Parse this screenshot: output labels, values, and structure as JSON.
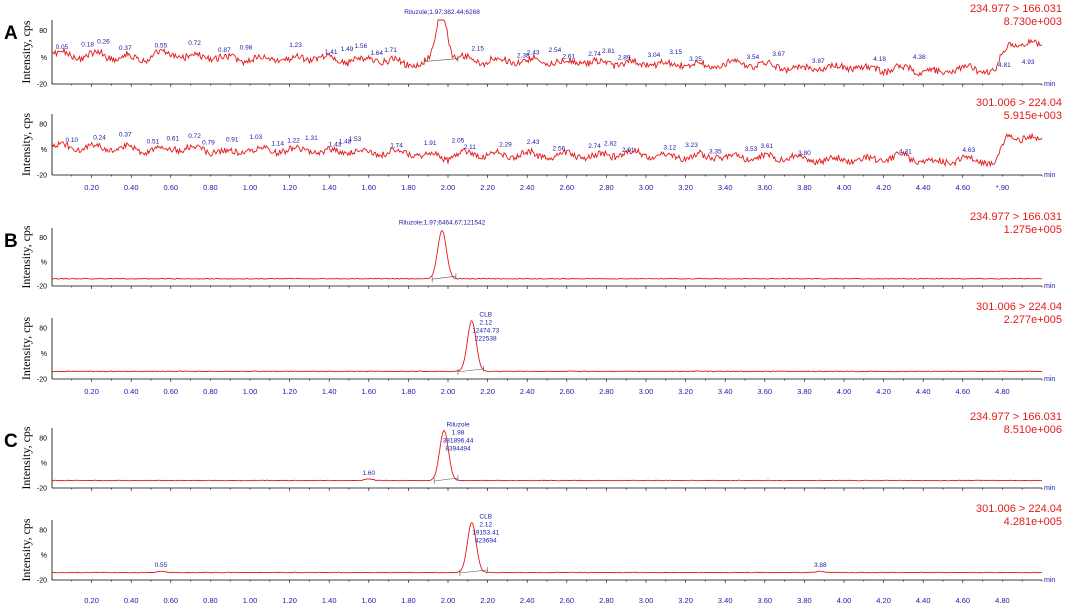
{
  "chart_data": [
    {
      "type": "line",
      "panel": "A",
      "transition": "234.977 > 166.031",
      "intensity": "8.730e+003",
      "ylabel": "Intensity, cps",
      "yticks": [
        "80",
        "%",
        "-20"
      ],
      "xunit": "min",
      "xlim": [
        0,
        5
      ],
      "show_xticks": false,
      "noise": 20,
      "peaks": [
        {
          "x": 1.97,
          "height": 95,
          "width": 0.025,
          "label": [
            "Riluzole;1.97;382.44;6268"
          ],
          "baseline": [
            1.88,
            2.05
          ]
        },
        {
          "x": 4.81,
          "height": 45,
          "width": 0.03
        }
      ],
      "peak_labels": [
        {
          "x": 0.05,
          "text": "0.05"
        },
        {
          "x": 0.18,
          "text": "0.18"
        },
        {
          "x": 0.26,
          "text": "0.26"
        },
        {
          "x": 0.37,
          "text": "0.37"
        },
        {
          "x": 0.55,
          "text": "0.55"
        },
        {
          "x": 0.72,
          "text": "0.72"
        },
        {
          "x": 0.87,
          "text": "0.87"
        },
        {
          "x": 0.98,
          "text": "0.98"
        },
        {
          "x": 1.23,
          "text": "1.23"
        },
        {
          "x": 1.41,
          "text": "1.41"
        },
        {
          "x": 1.49,
          "text": "1.49"
        },
        {
          "x": 1.56,
          "text": "1.56"
        },
        {
          "x": 1.64,
          "text": "1.64"
        },
        {
          "x": 1.71,
          "text": "1.71"
        },
        {
          "x": 2.15,
          "text": "2.15"
        },
        {
          "x": 2.38,
          "text": "2.38"
        },
        {
          "x": 2.43,
          "text": "2.43"
        },
        {
          "x": 2.54,
          "text": "2.54"
        },
        {
          "x": 2.61,
          "text": "2.61"
        },
        {
          "x": 2.74,
          "text": "2.74"
        },
        {
          "x": 2.81,
          "text": "2.81"
        },
        {
          "x": 2.89,
          "text": "2.89"
        },
        {
          "x": 3.04,
          "text": "3.04"
        },
        {
          "x": 3.15,
          "text": "3.15"
        },
        {
          "x": 3.25,
          "text": "3.25"
        },
        {
          "x": 3.54,
          "text": "3.54"
        },
        {
          "x": 3.67,
          "text": "3.67"
        },
        {
          "x": 3.87,
          "text": "3.87"
        },
        {
          "x": 4.18,
          "text": "4.18"
        },
        {
          "x": 4.38,
          "text": "4.38"
        },
        {
          "x": 4.81,
          "text": "4.81"
        },
        {
          "x": 4.93,
          "text": "4.93"
        }
      ]
    },
    {
      "type": "line",
      "panel": "",
      "transition": "301.006 > 224.04",
      "intensity": "5.915e+003",
      "ylabel": "Intensity, cps",
      "yticks": [
        "80",
        "%",
        "-20"
      ],
      "xunit": "min",
      "xlim": [
        0,
        5
      ],
      "show_xticks": true,
      "noise": 20,
      "peaks": [
        {
          "x": 4.8,
          "height": 45,
          "width": 0.03
        }
      ],
      "peak_labels": [
        {
          "x": 0.1,
          "text": "0.10"
        },
        {
          "x": 0.24,
          "text": "0.24"
        },
        {
          "x": 0.37,
          "text": "0.37"
        },
        {
          "x": 0.51,
          "text": "0.51"
        },
        {
          "x": 0.61,
          "text": "0.61"
        },
        {
          "x": 0.72,
          "text": "0.72"
        },
        {
          "x": 0.79,
          "text": "0.79"
        },
        {
          "x": 0.91,
          "text": "0.91"
        },
        {
          "x": 1.03,
          "text": "1.03"
        },
        {
          "x": 1.14,
          "text": "1.14"
        },
        {
          "x": 1.22,
          "text": "1.22"
        },
        {
          "x": 1.31,
          "text": "1.31"
        },
        {
          "x": 1.43,
          "text": "1.43"
        },
        {
          "x": 1.48,
          "text": "1.48"
        },
        {
          "x": 1.53,
          "text": "1.53"
        },
        {
          "x": 1.74,
          "text": "1.74"
        },
        {
          "x": 1.91,
          "text": "1.91"
        },
        {
          "x": 2.05,
          "text": "2.05"
        },
        {
          "x": 2.11,
          "text": "2.11"
        },
        {
          "x": 2.29,
          "text": "2.29"
        },
        {
          "x": 2.43,
          "text": "2.43"
        },
        {
          "x": 2.56,
          "text": "2.56"
        },
        {
          "x": 2.74,
          "text": "2.74"
        },
        {
          "x": 2.82,
          "text": "2.82"
        },
        {
          "x": 2.91,
          "text": "2.91"
        },
        {
          "x": 3.12,
          "text": "3.12"
        },
        {
          "x": 3.23,
          "text": "3.23"
        },
        {
          "x": 3.35,
          "text": "3.35"
        },
        {
          "x": 3.53,
          "text": "3.53"
        },
        {
          "x": 3.61,
          "text": "3.61"
        },
        {
          "x": 3.8,
          "text": "3.80"
        },
        {
          "x": 4.31,
          "text": "4.31"
        },
        {
          "x": 4.63,
          "text": "4.63"
        }
      ]
    },
    {
      "type": "line",
      "panel": "B",
      "transition": "234.977 > 166.031",
      "intensity": "1.275e+005",
      "ylabel": "Intensity, cps",
      "yticks": [
        "80",
        "%",
        "-20"
      ],
      "xunit": "min",
      "xlim": [
        0,
        5
      ],
      "show_xticks": false,
      "noise": 1.5,
      "peaks": [
        {
          "x": 1.97,
          "height": 100,
          "width": 0.022,
          "label": [
            "Riluzole;1.97;6464.67;121542"
          ],
          "baseline": [
            1.92,
            2.04
          ]
        }
      ],
      "peak_labels": []
    },
    {
      "type": "line",
      "panel": "",
      "transition": "301.006 > 224.04",
      "intensity": "2.277e+005",
      "ylabel": "Intensity, cps",
      "yticks": [
        "80",
        "%",
        "-20"
      ],
      "xunit": "min",
      "xlim": [
        0,
        5
      ],
      "show_xticks": true,
      "noise": 1.5,
      "peaks": [
        {
          "x": 2.12,
          "height": 100,
          "width": 0.022,
          "label": [
            "CLB",
            "2.12",
            "12474.73",
            "222538"
          ],
          "baseline": [
            2.05,
            2.18
          ]
        }
      ],
      "peak_labels": []
    },
    {
      "type": "line",
      "panel": "C",
      "transition": "234.977 > 166.031",
      "intensity": "8.510e+006",
      "ylabel": "Intensity, cps",
      "yticks": [
        "80",
        "%",
        "-20"
      ],
      "xunit": "min",
      "xlim": [
        0,
        5
      ],
      "show_xticks": false,
      "noise": 1.2,
      "peaks": [
        {
          "x": 1.98,
          "height": 100,
          "width": 0.022,
          "label": [
            "Riluzole",
            "1.98",
            "381896.44",
            "8394494"
          ],
          "baseline": [
            1.93,
            2.05
          ]
        },
        {
          "x": 1.6,
          "height": 3,
          "width": 0.02
        }
      ],
      "peak_labels": [
        {
          "x": 1.6,
          "text": "1.60"
        }
      ]
    },
    {
      "type": "line",
      "panel": "",
      "transition": "301.006 > 224.04",
      "intensity": "4.281e+005",
      "ylabel": "Intensity, cps",
      "yticks": [
        "80",
        "%",
        "-20"
      ],
      "xunit": "min",
      "xlim": [
        0,
        5
      ],
      "show_xticks": true,
      "noise": 1.2,
      "peaks": [
        {
          "x": 2.12,
          "height": 100,
          "width": 0.022,
          "label": [
            "CLB",
            "2.12",
            "19153.41",
            "423694"
          ],
          "baseline": [
            2.06,
            2.2
          ]
        },
        {
          "x": 0.55,
          "height": 2,
          "width": 0.02
        },
        {
          "x": 3.88,
          "height": 2,
          "width": 0.02
        }
      ],
      "peak_labels": [
        {
          "x": 0.55,
          "text": "0.55"
        },
        {
          "x": 3.88,
          "text": "3.88"
        }
      ]
    }
  ],
  "xtick_labels": [
    "0.20",
    "0.40",
    "0.60",
    "0.80",
    "1.00",
    "1.20",
    "1.40",
    "1.60",
    "1.80",
    "2.00",
    "2.20",
    "2.40",
    "2.60",
    "2.80",
    "3.00",
    "3.20",
    "3.40",
    "3.60",
    "3.80",
    "4.00",
    "4.20",
    "4.40",
    "4.60",
    "4.80"
  ],
  "xtick_values": [
    0.2,
    0.4,
    0.6,
    0.8,
    1.0,
    1.2,
    1.4,
    1.6,
    1.8,
    2.0,
    2.2,
    2.4,
    2.6,
    2.8,
    3.0,
    3.2,
    3.4,
    3.6,
    3.8,
    4.0,
    4.2,
    4.4,
    4.6,
    4.8
  ],
  "panelA_last_tick_label": "*.90"
}
